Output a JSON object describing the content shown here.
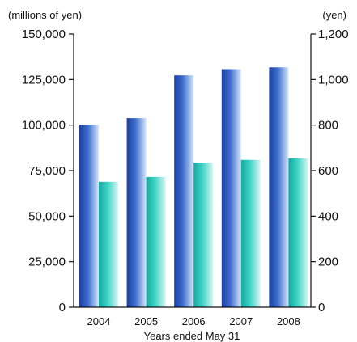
{
  "chart_data": {
    "type": "bar",
    "categories": [
      "2004",
      "2005",
      "2006",
      "2007",
      "2008"
    ],
    "xlabel": "Years ended May 31",
    "left_axis": {
      "unit_label": "(millions of yen)",
      "range": [
        0,
        150000
      ],
      "ticks": [
        0,
        25000,
        50000,
        75000,
        100000,
        125000,
        150000
      ],
      "tick_labels": [
        "0",
        "25,000",
        "50,000",
        "75,000",
        "100,000",
        "125,000",
        "150,000"
      ]
    },
    "right_axis": {
      "unit_label": "(yen)",
      "range": [
        0,
        1200
      ],
      "ticks": [
        0,
        200,
        400,
        600,
        800,
        1000,
        1200
      ],
      "tick_labels": [
        "0",
        "200",
        "400",
        "600",
        "800",
        "1,000",
        "1,200"
      ]
    },
    "series": [
      {
        "axis": "left",
        "color": "#2a52b8",
        "values": [
          100200,
          103800,
          127300,
          130700,
          131700
        ]
      },
      {
        "axis": "right",
        "color": "#2bbfb3",
        "values": [
          551,
          572,
          635,
          647,
          654
        ]
      }
    ],
    "grid": false,
    "legend": "none"
  }
}
